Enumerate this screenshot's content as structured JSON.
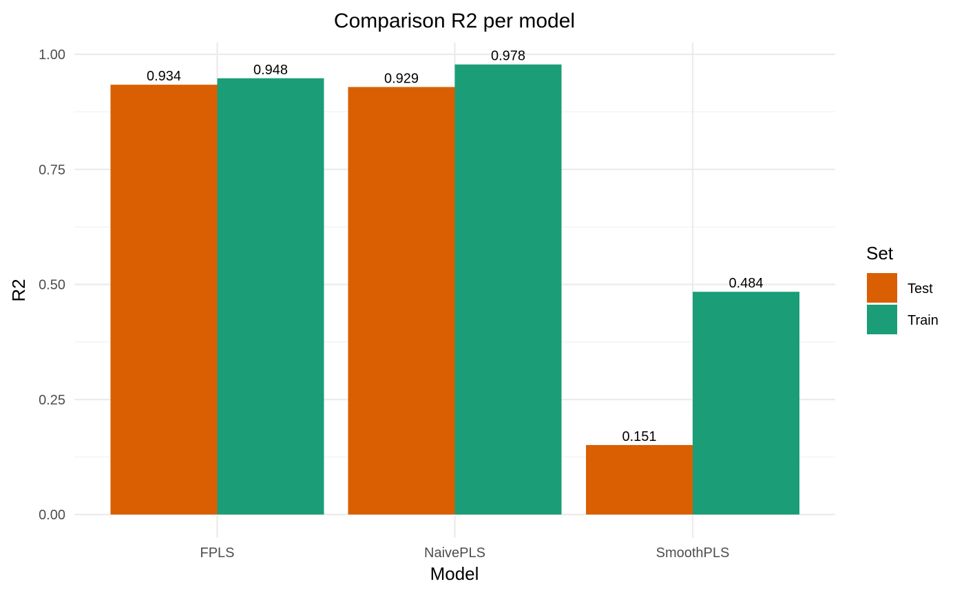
{
  "chart_data": {
    "type": "bar",
    "title": "Comparison R2 per model",
    "xlabel": "Model",
    "ylabel": "R2",
    "categories": [
      "FPLS",
      "NaivePLS",
      "SmoothPLS"
    ],
    "series": [
      {
        "name": "Test",
        "color": "#d95f02",
        "values": [
          0.934,
          0.929,
          0.151
        ],
        "labels": [
          "0.934",
          "0.929",
          "0.151"
        ]
      },
      {
        "name": "Train",
        "color": "#1b9e77",
        "values": [
          0.948,
          0.978,
          0.484
        ],
        "labels": [
          "0.948",
          "0.978",
          "0.484"
        ]
      }
    ],
    "ylim": [
      0,
      1
    ],
    "yticks": [
      0,
      0.25,
      0.5,
      0.75,
      1
    ],
    "ytick_labels": [
      "0.00",
      "0.25",
      "0.50",
      "0.75",
      "1.00"
    ],
    "grid": true,
    "legend": {
      "title": "Set",
      "position": "right"
    }
  }
}
